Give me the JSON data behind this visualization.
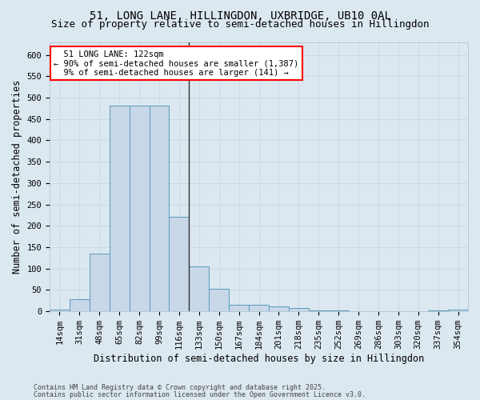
{
  "title_line1": "51, LONG LANE, HILLINGDON, UXBRIDGE, UB10 0AL",
  "title_line2": "Size of property relative to semi-detached houses in Hillingdon",
  "xlabel": "Distribution of semi-detached houses by size in Hillingdon",
  "ylabel": "Number of semi-detached properties",
  "bar_labels": [
    "14sqm",
    "31sqm",
    "48sqm",
    "65sqm",
    "82sqm",
    "99sqm",
    "116sqm",
    "133sqm",
    "150sqm",
    "167sqm",
    "184sqm",
    "201sqm",
    "218sqm",
    "235sqm",
    "252sqm",
    "269sqm",
    "286sqm",
    "303sqm",
    "320sqm",
    "337sqm",
    "354sqm"
  ],
  "bar_values": [
    4,
    28,
    135,
    481,
    481,
    481,
    222,
    105,
    52,
    15,
    15,
    12,
    7,
    2,
    2,
    0,
    0,
    0,
    0,
    2,
    4
  ],
  "bar_color": "#c8d8e8",
  "bar_edge_color": "#5599bb",
  "vline_x": 6.5,
  "annotation_text_line1": "  51 LONG LANE: 122sqm",
  "annotation_text_line2": "← 90% of semi-detached houses are smaller (1,387)",
  "annotation_text_line3": "  9% of semi-detached houses are larger (141) →",
  "annotation_box_color": "white",
  "annotation_box_edge": "red",
  "vline_color": "#333333",
  "grid_color": "#c8d8e8",
  "background_color": "#dce8f0",
  "footer_line1": "Contains HM Land Registry data © Crown copyright and database right 2025.",
  "footer_line2": "Contains public sector information licensed under the Open Government Licence v3.0.",
  "ylim": [
    0,
    630
  ],
  "yticks": [
    0,
    50,
    100,
    150,
    200,
    250,
    300,
    350,
    400,
    450,
    500,
    550,
    600
  ],
  "title_fontsize": 10,
  "subtitle_fontsize": 9,
  "axis_label_fontsize": 8.5,
  "tick_fontsize": 7.5,
  "footer_fontsize": 6
}
